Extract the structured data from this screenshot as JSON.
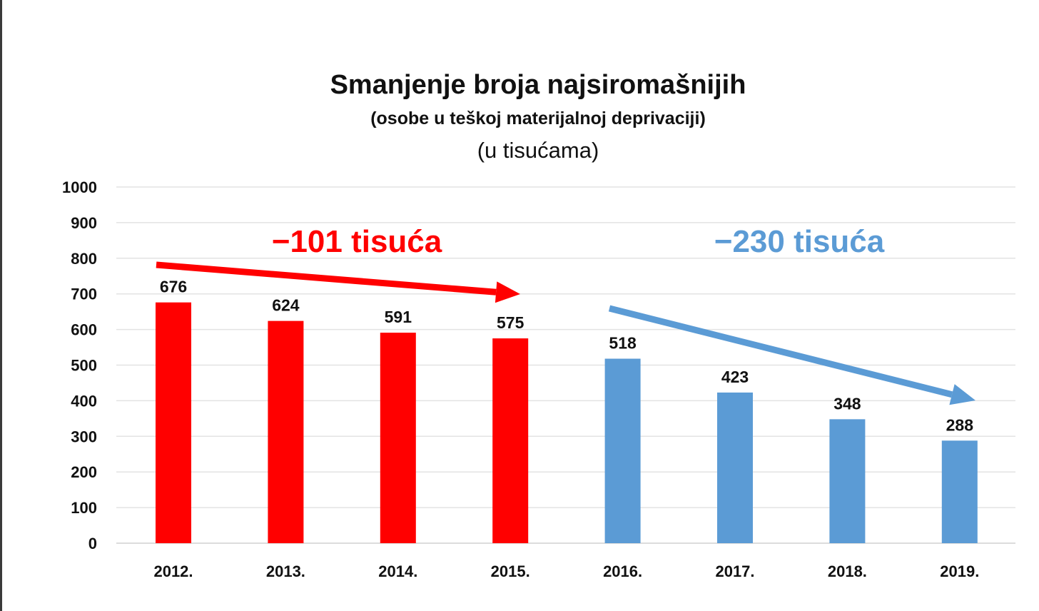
{
  "chart_data": {
    "type": "bar",
    "title": "Smanjenje broja najsiromašnijih",
    "subtitle": "(osobe u teškoj materijalnoj deprivaciji)",
    "unit_note": "(u tisućama)",
    "categories": [
      "2012.",
      "2013.",
      "2014.",
      "2015.",
      "2016.",
      "2017.",
      "2018.",
      "2019."
    ],
    "values": [
      676,
      624,
      591,
      575,
      518,
      423,
      348,
      288
    ],
    "ylim": [
      0,
      1000
    ],
    "yticks": [
      0,
      100,
      200,
      300,
      400,
      500,
      600,
      700,
      800,
      900,
      1000
    ],
    "grid": true,
    "colors": {
      "group1": "#ff0000",
      "group2": "#5b9bd5"
    },
    "groups": [
      {
        "from": 0,
        "to": 3,
        "color": "#ff0000"
      },
      {
        "from": 4,
        "to": 7,
        "color": "#5b9bd5"
      }
    ],
    "annotations": [
      {
        "text": "−101 tisuća",
        "color": "#ff0000"
      },
      {
        "text": "−230 tisuća",
        "color": "#5b9bd5"
      }
    ]
  }
}
